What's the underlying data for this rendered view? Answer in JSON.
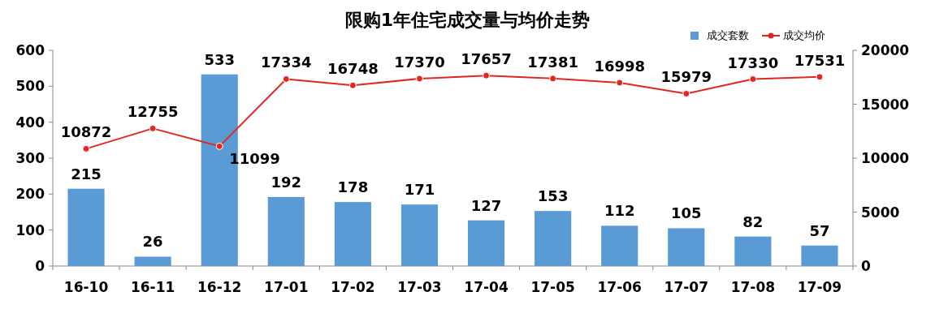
{
  "chart_data": {
    "type": "bar",
    "title": "限购1年住宅成交量与均价走势",
    "categories": [
      "16-10",
      "16-11",
      "16-12",
      "17-01",
      "17-02",
      "17-03",
      "17-04",
      "17-05",
      "17-06",
      "17-07",
      "17-08",
      "17-09"
    ],
    "series": [
      {
        "name": "成交套数",
        "color": "#5b9bd5",
        "values": [
          215,
          26,
          533,
          192,
          178,
          171,
          127,
          153,
          112,
          105,
          82,
          57
        ]
      },
      {
        "name": "成交均价",
        "type": "line",
        "axis": "y2",
        "color": "#e3261f",
        "marker": "circle",
        "values": [
          10872,
          12755,
          11099,
          17334,
          16748,
          17370,
          17657,
          17381,
          16998,
          15979,
          17330,
          17531
        ]
      }
    ],
    "ylim": [
      0,
      600
    ],
    "yticks": [
      0,
      100,
      200,
      300,
      400,
      500,
      600
    ],
    "y2lim": [
      0,
      20000
    ],
    "y2ticks": [
      0,
      5000,
      10000,
      15000,
      20000
    ],
    "data_labels": true,
    "legend": "top right",
    "grid": false
  }
}
